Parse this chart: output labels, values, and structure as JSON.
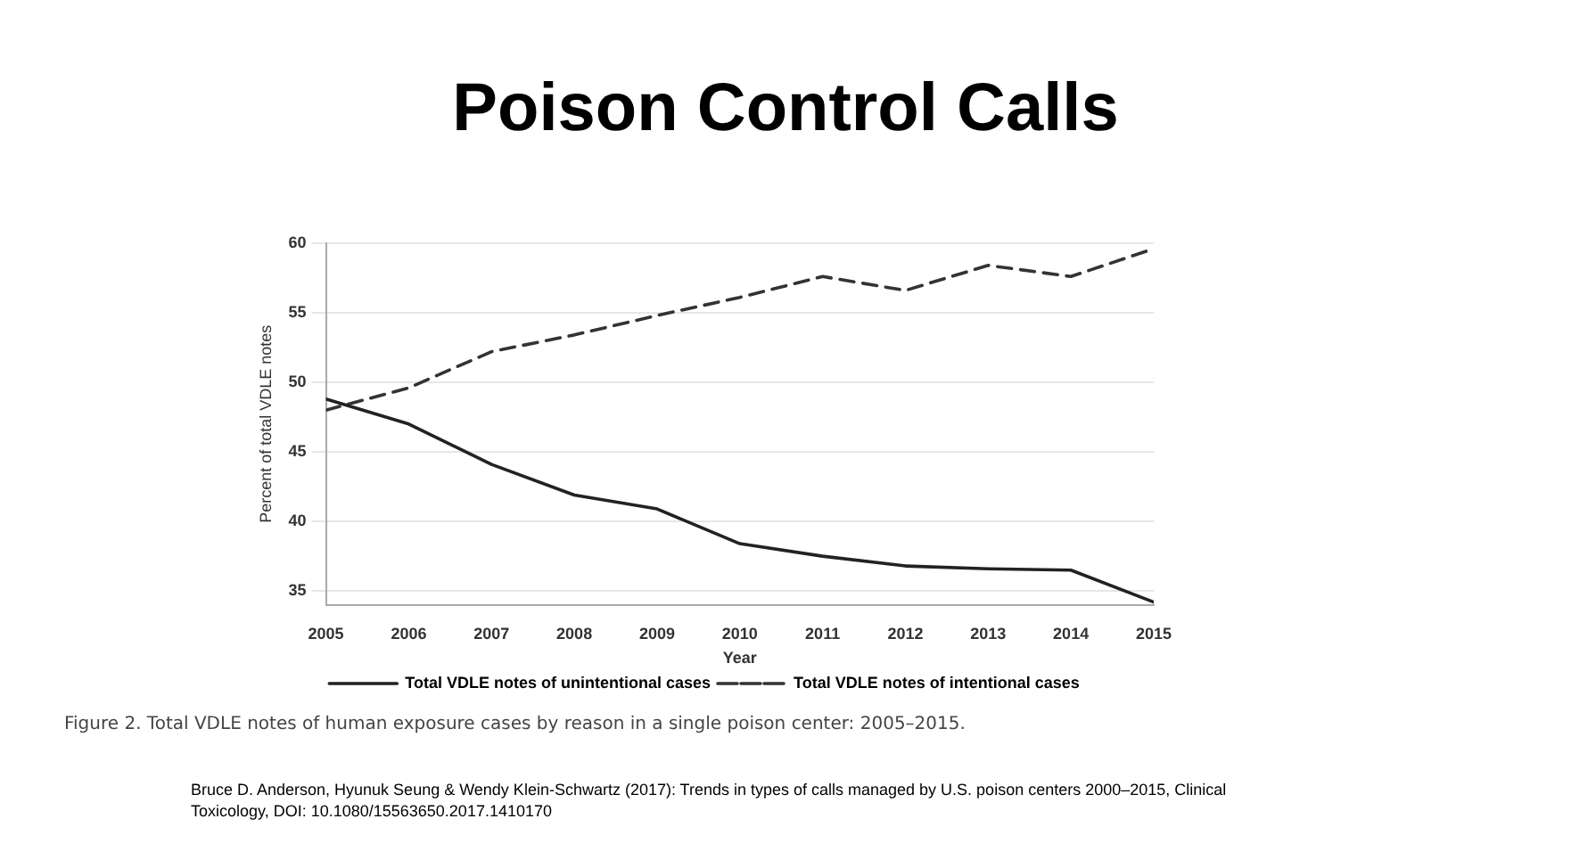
{
  "chart_data": {
    "type": "line",
    "title": "Poison Control Calls",
    "xlabel": "Year",
    "ylabel": "Percent of total VDLE notes",
    "x": [
      2005,
      2006,
      2007,
      2008,
      2009,
      2010,
      2011,
      2012,
      2013,
      2014,
      2015
    ],
    "series": [
      {
        "name": "Total VDLE notes of unintentional cases",
        "color": "#222222",
        "line_style": "solid",
        "values": [
          48.8,
          47.0,
          44.1,
          41.9,
          40.9,
          38.4,
          37.5,
          36.8,
          36.6,
          36.5,
          34.2
        ]
      },
      {
        "name": "Total VDLE notes of intentional cases",
        "color": "#333333",
        "line_style": "dashed",
        "values": [
          48.0,
          49.6,
          52.2,
          53.4,
          54.8,
          56.1,
          57.6,
          56.6,
          58.4,
          57.6,
          59.6
        ]
      }
    ],
    "xlim": [
      2005,
      2015
    ],
    "xticks": [
      2005,
      2006,
      2007,
      2008,
      2009,
      2010,
      2011,
      2012,
      2013,
      2014,
      2015
    ],
    "ylim": [
      34,
      60
    ],
    "yticks": [
      35,
      40,
      45,
      50,
      55,
      60
    ],
    "grid": "y",
    "legend": "bottom",
    "marker": "none",
    "annotations": [
      "Figure 2.  Total VDLE notes of human exposure cases by reason in a single poison center: 2005–2015.",
      "Bruce D. Anderson, Hyunuk Seung & Wendy Klein-Schwartz (2017): Trends in types of calls managed by U.S. poison centers 2000–2015, Clinical Toxicology, DOI: 10.1080/15563650.2017.1410170"
    ]
  }
}
